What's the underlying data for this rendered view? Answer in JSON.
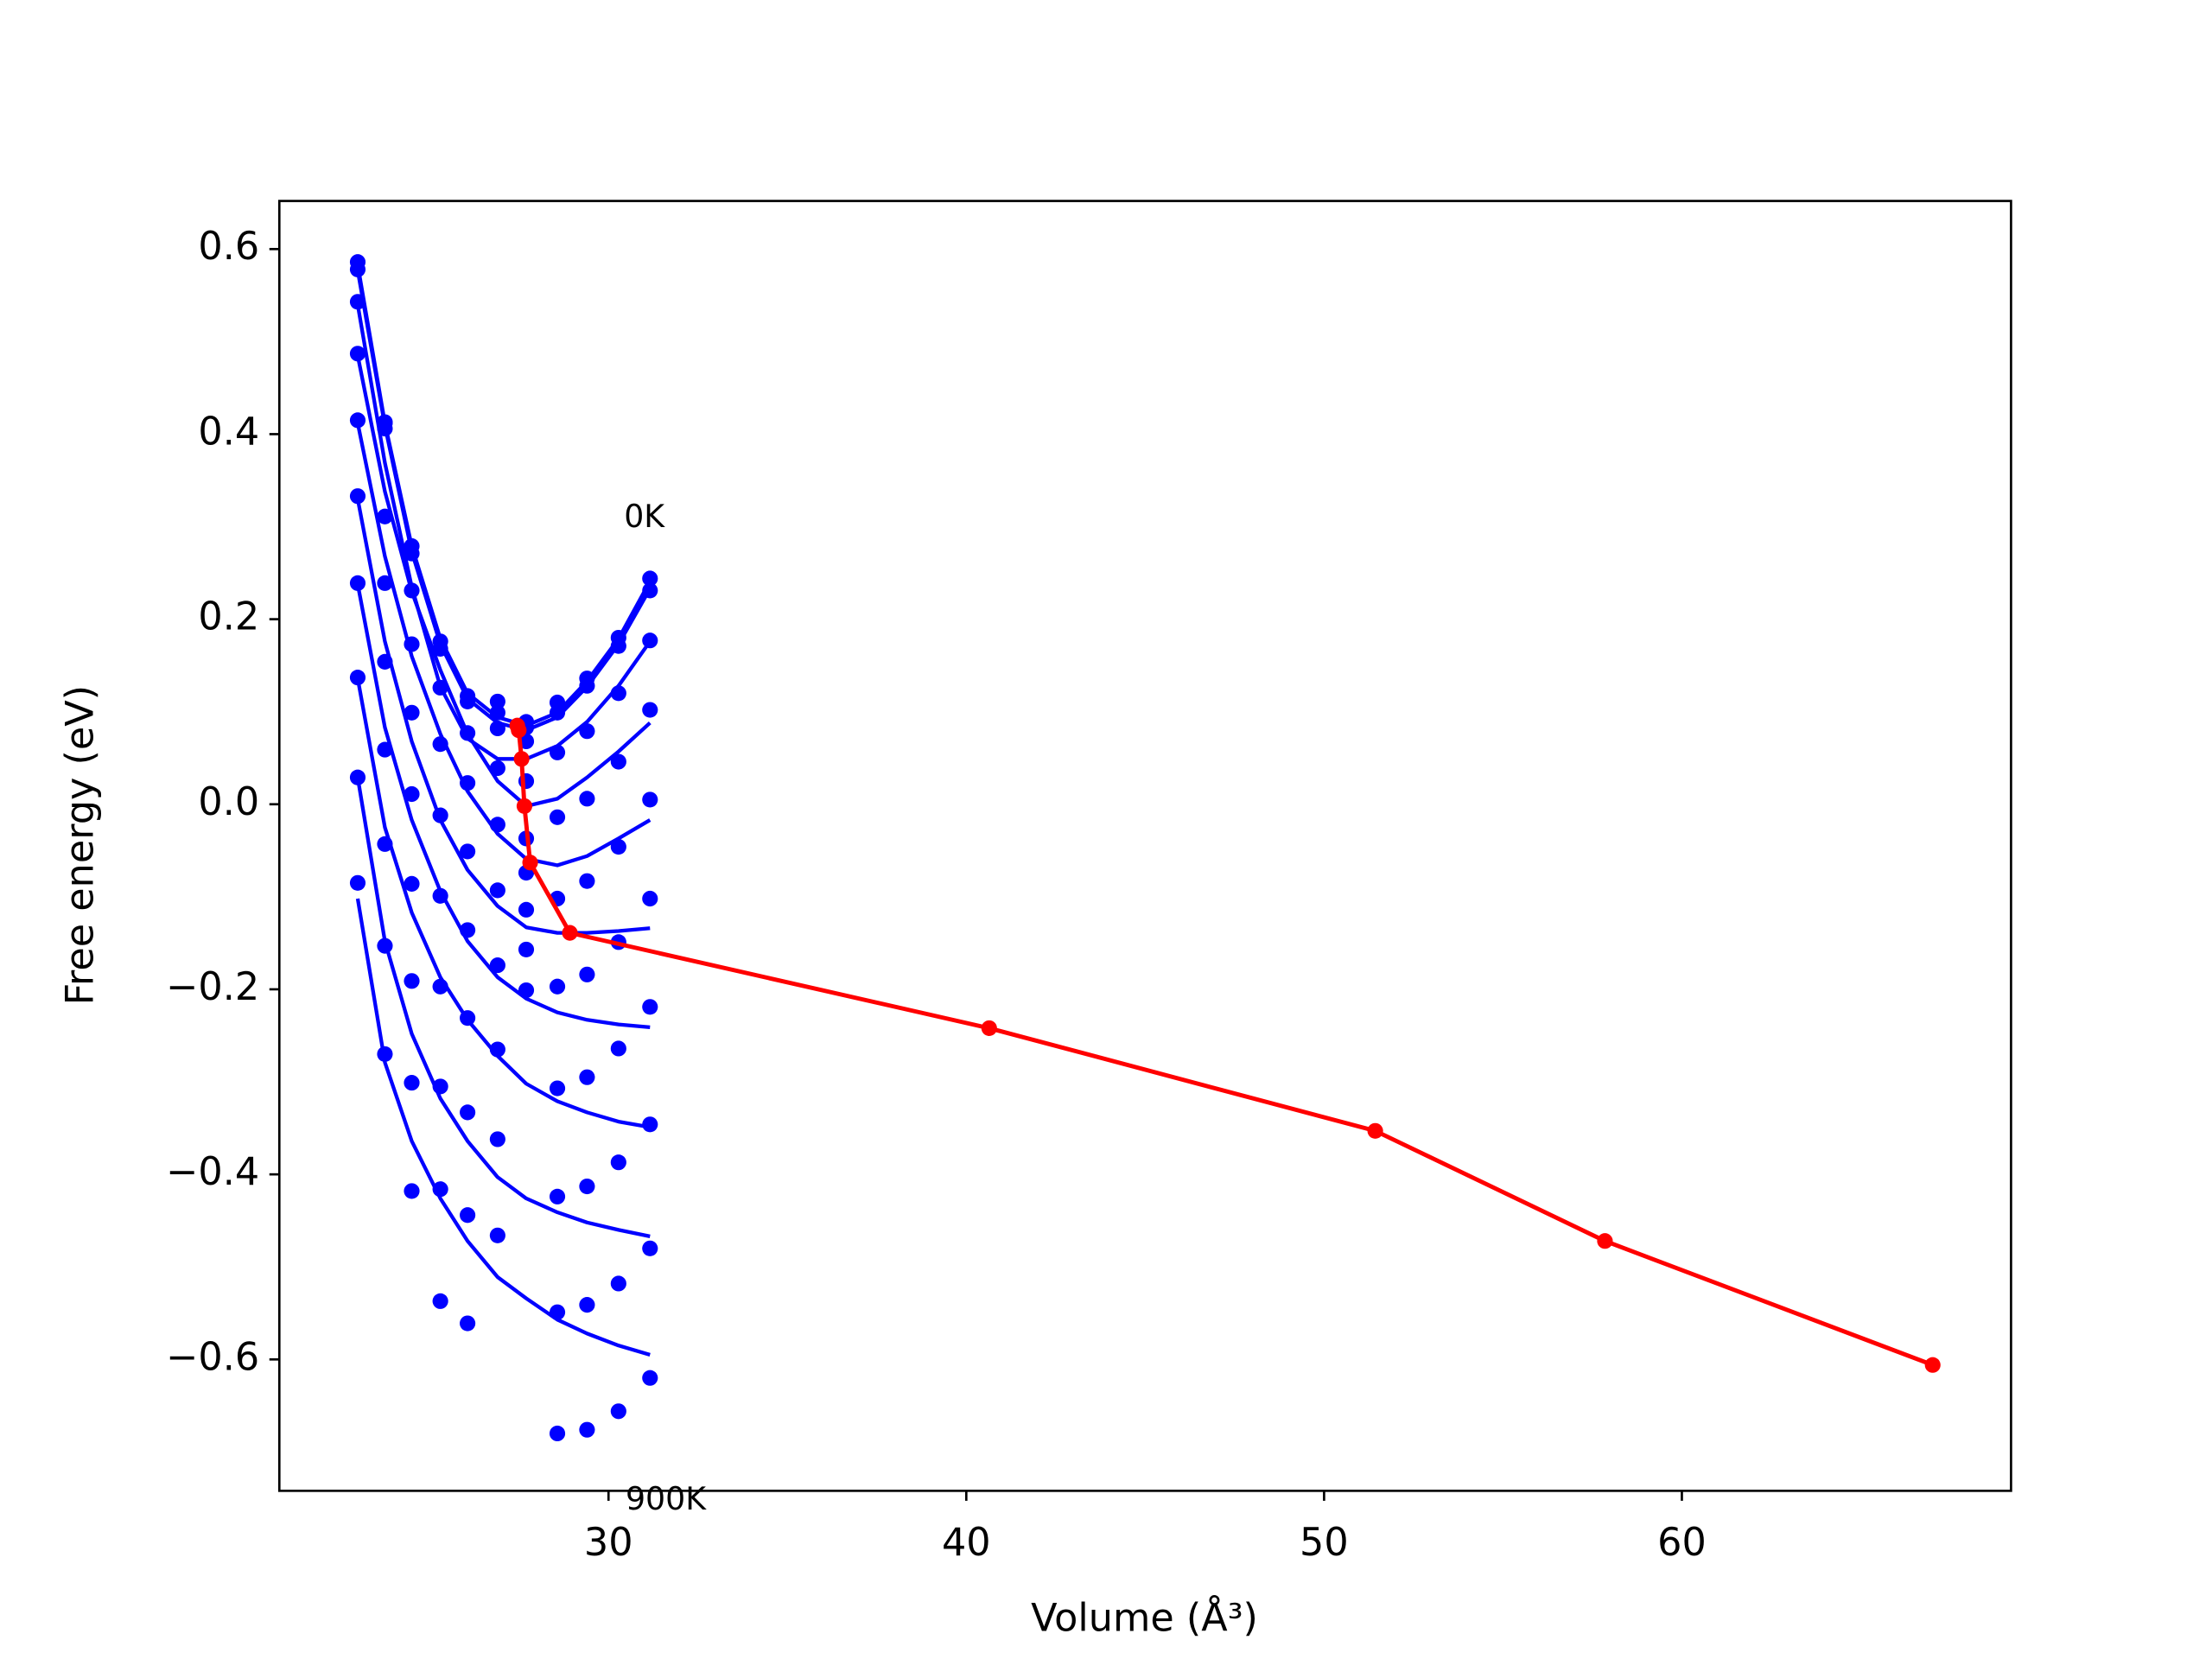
{
  "chart_data": {
    "type": "line",
    "xlabel": "Volume (Å³)",
    "ylabel": "Free energy (eV)",
    "x": [
      22.99,
      23.75,
      24.5,
      25.3,
      26.06,
      26.9,
      27.7,
      28.57,
      29.4,
      30.28,
      31.16
    ],
    "points": [
      {
        "color": "#0000ff",
        "values": [
          0.586,
          0.413,
          0.279,
          0.176,
          0.117,
          0.111,
          0.089,
          0.11,
          0.136,
          0.18,
          0.244
        ]
      },
      {
        "color": "#0000ff",
        "values": [
          0.578,
          0.412,
          0.271,
          0.168,
          0.111,
          0.099,
          0.083,
          0.099,
          0.128,
          0.171,
          0.231
        ]
      },
      {
        "color": "#0000ff",
        "values": [
          0.543,
          0.406,
          0.231,
          0.126,
          0.077,
          0.082,
          0.068,
          0.056,
          0.079,
          0.12,
          0.177
        ]
      },
      {
        "color": "#0000ff",
        "values": [
          0.487,
          0.311,
          0.173,
          0.065,
          0.023,
          0.039,
          0.025,
          -0.014,
          0.006,
          0.046,
          0.102
        ]
      },
      {
        "color": "#0000ff",
        "values": [
          0.415,
          0.239,
          0.099,
          -0.012,
          -0.051,
          -0.022,
          -0.037,
          -0.102,
          -0.083,
          -0.046,
          0.005
        ]
      },
      {
        "color": "#0000ff",
        "values": [
          0.333,
          0.154,
          0.011,
          -0.099,
          -0.136,
          -0.093,
          -0.074,
          -0.197,
          -0.184,
          -0.149,
          -0.102
        ]
      },
      {
        "color": "#0000ff",
        "values": [
          0.239,
          0.059,
          -0.086,
          -0.197,
          -0.231,
          -0.174,
          -0.114,
          -0.307,
          -0.295,
          -0.264,
          -0.219
        ]
      },
      {
        "color": "#0000ff",
        "values": [
          0.137,
          -0.043,
          -0.191,
          -0.305,
          -0.333,
          -0.265,
          -0.157,
          -0.424,
          -0.413,
          -0.387,
          -0.346
        ]
      },
      {
        "color": "#0000ff",
        "values": [
          0.029,
          -0.153,
          -0.301,
          -0.416,
          -0.444,
          -0.362,
          -0.201,
          -0.549,
          -0.541,
          -0.518,
          -0.48
        ]
      },
      {
        "color": "#0000ff",
        "values": [
          -0.085,
          -0.27,
          -0.418,
          -0.537,
          -0.561,
          -0.466,
          null,
          -0.68,
          -0.676,
          -0.656,
          -0.62
        ]
      }
    ],
    "fits": [
      {
        "color": "#0000ff",
        "values": [
          0.583,
          0.412,
          0.279,
          0.179,
          0.12,
          0.094,
          0.085,
          0.099,
          0.133,
          0.179,
          0.241
        ]
      },
      {
        "color": "#0000ff",
        "values": [
          0.577,
          0.409,
          0.273,
          0.173,
          0.114,
          0.088,
          0.08,
          0.094,
          0.127,
          0.173,
          0.233
        ]
      },
      {
        "color": "#0000ff",
        "values": [
          0.54,
          0.369,
          0.235,
          0.127,
          0.071,
          0.049,
          0.049,
          0.063,
          0.089,
          0.128,
          0.176
        ]
      },
      {
        "color": "#0000ff",
        "values": [
          0.485,
          0.338,
          0.23,
          0.145,
          0.076,
          0.025,
          -0.002,
          0.006,
          0.029,
          0.057,
          0.088
        ]
      },
      {
        "color": "#0000ff",
        "values": [
          0.412,
          0.268,
          0.16,
          0.076,
          0.014,
          -0.032,
          -0.059,
          -0.066,
          -0.056,
          -0.037,
          -0.017
        ]
      },
      {
        "color": "#0000ff",
        "values": [
          0.33,
          0.176,
          0.068,
          -0.017,
          -0.071,
          -0.11,
          -0.133,
          -0.139,
          -0.139,
          -0.137,
          -0.134
        ]
      },
      {
        "color": "#0000ff",
        "values": [
          0.238,
          0.083,
          -0.017,
          -0.094,
          -0.148,
          -0.187,
          -0.21,
          -0.225,
          -0.233,
          -0.238,
          -0.241
        ]
      },
      {
        "color": "#0000ff",
        "values": [
          0.136,
          -0.025,
          -0.117,
          -0.187,
          -0.233,
          -0.272,
          -0.302,
          -0.321,
          -0.333,
          -0.343,
          -0.349
        ]
      },
      {
        "color": "#0000ff",
        "values": [
          0.029,
          -0.148,
          -0.248,
          -0.318,
          -0.364,
          -0.403,
          -0.426,
          -0.441,
          -0.452,
          -0.46,
          -0.467
        ]
      },
      {
        "color": "#0000ff",
        "values": [
          -0.102,
          -0.279,
          -0.364,
          -0.426,
          -0.472,
          -0.511,
          -0.534,
          -0.557,
          -0.572,
          -0.585,
          -0.595
        ]
      }
    ],
    "minima": {
      "color": "#ff0000",
      "x": [
        27.45,
        27.49,
        27.57,
        27.65,
        27.81,
        28.92,
        40.64,
        51.43,
        57.85,
        67.01
      ],
      "values": [
        0.085,
        0.08,
        0.049,
        -0.002,
        -0.063,
        -0.139,
        -0.242,
        -0.353,
        -0.472,
        -0.606
      ]
    },
    "annotations": [
      {
        "text": "0K",
        "x": 31.0,
        "y": 0.309
      },
      {
        "text": "900K",
        "x": 31.6,
        "y": -0.753
      }
    ],
    "xlim": [
      20.8,
      69.2
    ],
    "ylim": [
      -0.742,
      0.652
    ],
    "xticks": [
      30,
      40,
      50,
      60
    ],
    "yticks": [
      {
        "value": -0.6,
        "label": "−0.6"
      },
      {
        "value": -0.4,
        "label": "−0.4"
      },
      {
        "value": -0.2,
        "label": "−0.2"
      },
      {
        "value": 0,
        "label": "0.0"
      },
      0.2,
      0.4,
      0.6
    ]
  }
}
